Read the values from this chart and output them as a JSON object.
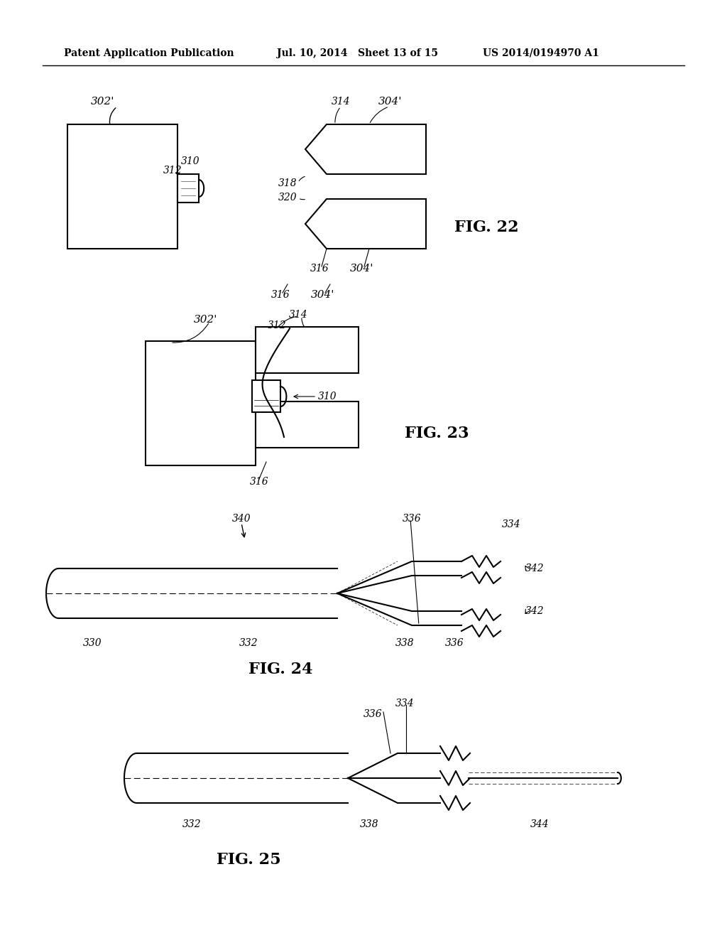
{
  "header_left": "Patent Application Publication",
  "header_mid": "Jul. 10, 2014   Sheet 13 of 15",
  "header_right": "US 2014/0194970 A1",
  "bg_color": "#ffffff",
  "line_color": "#000000",
  "fig22_label": "FIG. 22",
  "fig23_label": "FIG. 23",
  "fig24_label": "FIG. 24",
  "fig25_label": "FIG. 25"
}
